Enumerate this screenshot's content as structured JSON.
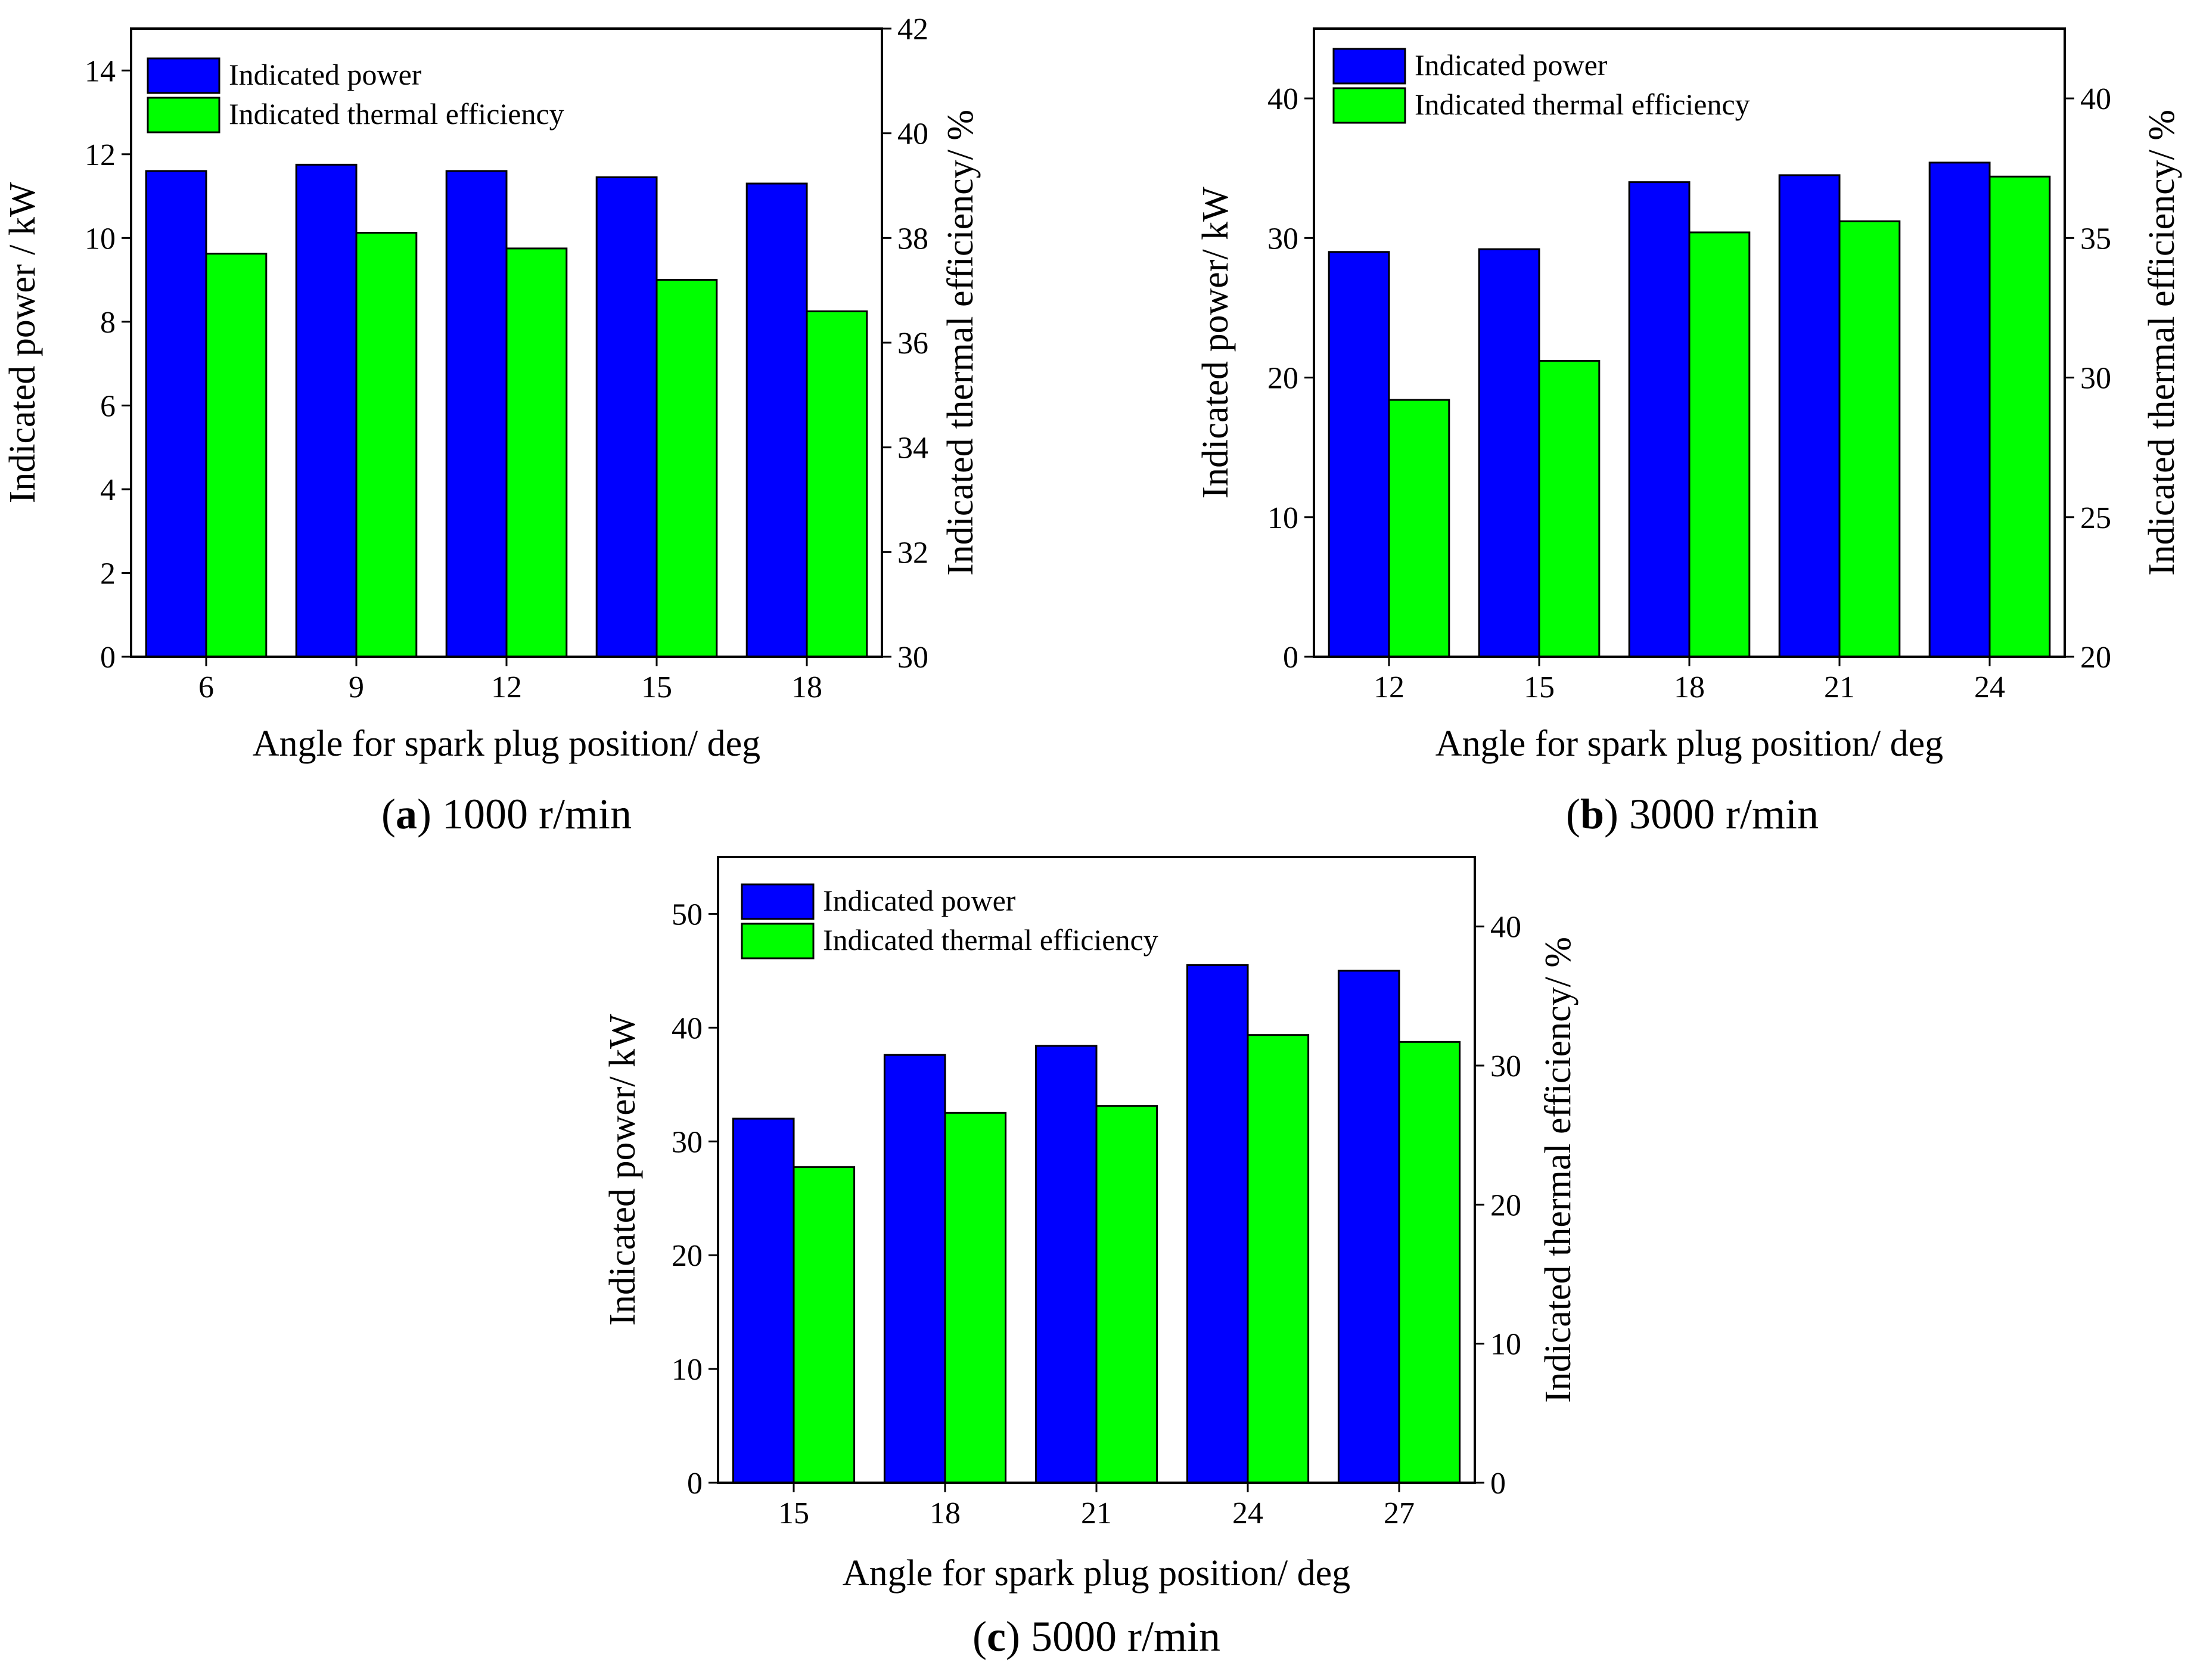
{
  "legend": {
    "power_label": "Indicated power",
    "efficiency_label": "Indicated thermal efficiency"
  },
  "colors": {
    "power": "#0000ff",
    "efficiency": "#00ff00",
    "axis": "#000000"
  },
  "chart_data": [
    {
      "type": "bar",
      "panel": "a",
      "caption_letter": "a",
      "caption_text": "1000 r/min",
      "categories": [
        "6",
        "9",
        "12",
        "15",
        "18"
      ],
      "xlabel": "Angle for spark plug position/ deg",
      "ylabel": "Indicated power / kW",
      "y2label": "Indicated thermal efficiency/ %",
      "ylim": [
        0,
        15
      ],
      "yticks": [
        0,
        2,
        4,
        6,
        8,
        10,
        12,
        14
      ],
      "y2lim": [
        30,
        42
      ],
      "y2ticks": [
        30,
        32,
        34,
        36,
        38,
        40,
        42
      ],
      "series": [
        {
          "name": "Indicated power",
          "axis": "left",
          "values": [
            11.6,
            11.75,
            11.6,
            11.45,
            11.3
          ]
        },
        {
          "name": "Indicated thermal efficiency",
          "axis": "right",
          "values": [
            37.7,
            38.1,
            37.8,
            37.2,
            36.6
          ]
        }
      ]
    },
    {
      "type": "bar",
      "panel": "b",
      "caption_letter": "b",
      "caption_text": "3000 r/min",
      "categories": [
        "12",
        "15",
        "18",
        "21",
        "24"
      ],
      "xlabel": "Angle for spark plug position/ deg",
      "ylabel": "Indicated power/ kW",
      "y2label": "Indicated thermal efficiency/ %",
      "ylim": [
        0,
        45
      ],
      "yticks": [
        0,
        10,
        20,
        30,
        40
      ],
      "y2lim": [
        20,
        42.5
      ],
      "y2ticks": [
        20,
        25,
        30,
        35,
        40
      ],
      "series": [
        {
          "name": "Indicated power",
          "axis": "left",
          "values": [
            29.0,
            29.2,
            34.0,
            34.5,
            35.4
          ]
        },
        {
          "name": "Indicated thermal efficiency",
          "axis": "right",
          "values": [
            29.2,
            30.6,
            35.2,
            35.6,
            37.2
          ]
        }
      ]
    },
    {
      "type": "bar",
      "panel": "c",
      "caption_letter": "c",
      "caption_text": "5000 r/min",
      "categories": [
        "15",
        "18",
        "21",
        "24",
        "27"
      ],
      "xlabel": "Angle for spark plug position/ deg",
      "ylabel": "Indicated power/ kW",
      "y2label": "Indicated thermal efficiency/ %",
      "ylim": [
        0,
        55
      ],
      "yticks": [
        0,
        10,
        20,
        30,
        40,
        50
      ],
      "y2lim": [
        0,
        45
      ],
      "y2ticks": [
        0,
        10,
        20,
        30,
        40
      ],
      "series": [
        {
          "name": "Indicated power",
          "axis": "left",
          "values": [
            32.0,
            37.6,
            38.4,
            45.5,
            45.0
          ]
        },
        {
          "name": "Indicated thermal efficiency",
          "axis": "right",
          "values": [
            22.7,
            26.6,
            27.1,
            32.2,
            31.7
          ]
        }
      ]
    }
  ]
}
